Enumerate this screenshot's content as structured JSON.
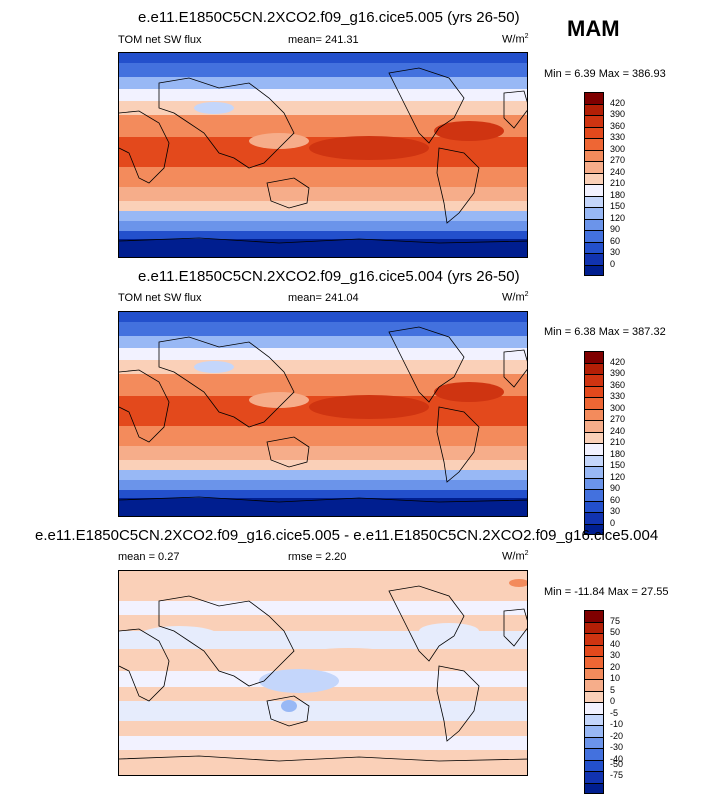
{
  "season": "MAM",
  "panels": [
    {
      "title": "e.e11.E1850C5CN.2XCO2.f09_g16.cice5.005 (yrs 26-50)",
      "left_label": "TOM net SW flux",
      "center_label": "mean= 241.31",
      "units": "W/m",
      "units_sup": "2",
      "minmax": "Min =   6.39 Max = 386.93",
      "levels": [
        "420",
        "390",
        "360",
        "330",
        "300",
        "270",
        "240",
        "210",
        "180",
        "150",
        "120",
        "90",
        "60",
        "30",
        "0"
      ],
      "colors": [
        "#7f0000",
        "#b31f06",
        "#cf3411",
        "#e3491c",
        "#ee6634",
        "#f38b5c",
        "#f6ad8a",
        "#fad0b8",
        "#f2f2ff",
        "#c4d6fb",
        "#98b8f5",
        "#6b94ea",
        "#4371de",
        "#2350cc",
        "#1133b0",
        "#001e8f"
      ]
    },
    {
      "title": "e.e11.E1850C5CN.2XCO2.f09_g16.cice5.004 (yrs 26-50)",
      "left_label": "TOM net SW flux",
      "center_label": "mean= 241.04",
      "units": "W/m",
      "units_sup": "2",
      "minmax": "Min =   6.38 Max = 387.32",
      "levels": [
        "420",
        "390",
        "360",
        "330",
        "300",
        "270",
        "240",
        "210",
        "180",
        "150",
        "120",
        "90",
        "60",
        "30",
        "0"
      ],
      "colors": [
        "#7f0000",
        "#b31f06",
        "#cf3411",
        "#e3491c",
        "#ee6634",
        "#f38b5c",
        "#f6ad8a",
        "#fad0b8",
        "#f2f2ff",
        "#c4d6fb",
        "#98b8f5",
        "#6b94ea",
        "#4371de",
        "#2350cc",
        "#1133b0",
        "#001e8f"
      ]
    },
    {
      "title": "e.e11.E1850C5CN.2XCO2.f09_g16.cice5.005 - e.e11.E1850C5CN.2XCO2.f09_g16.cice5.004",
      "left_label": "mean =   0.27",
      "center_label": "rmse =   2.20",
      "units": "W/m",
      "units_sup": "2",
      "minmax": "Min = -11.84 Max =  27.55",
      "levels": [
        "75",
        "50",
        "40",
        "30",
        "20",
        "10",
        "5",
        "0",
        "-5",
        "-10",
        "-20",
        "-30",
        "-40",
        "-50",
        "-75"
      ],
      "colors": [
        "#7f0000",
        "#b31f06",
        "#cf3411",
        "#e3491c",
        "#ee6634",
        "#f38b5c",
        "#f6ad8a",
        "#fad0b8",
        "#f2f2ff",
        "#c4d6fb",
        "#98b8f5",
        "#6b94ea",
        "#4371de",
        "#2350cc",
        "#1133b0",
        "#001e8f"
      ]
    }
  ]
}
